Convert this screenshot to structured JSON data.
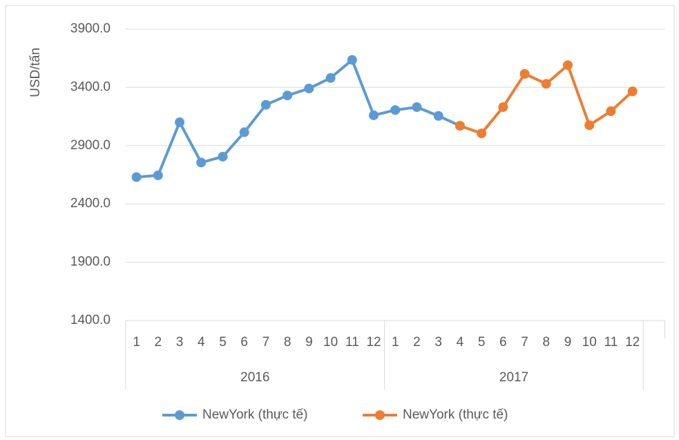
{
  "chart_data": {
    "type": "line",
    "ylabel": "USD/tấn",
    "category_groups": [
      {
        "name": "2016",
        "categories": [
          "1",
          "2",
          "3",
          "4",
          "5",
          "6",
          "7",
          "8",
          "9",
          "10",
          "11",
          "12"
        ]
      },
      {
        "name": "2017",
        "categories": [
          "1",
          "2",
          "3",
          "4",
          "5",
          "6",
          "7",
          "8",
          "9",
          "10",
          "11",
          "12"
        ]
      }
    ],
    "series": [
      {
        "name": "NewYork (thực tế)",
        "color": "#5b9bd5",
        "values": [
          2630,
          2645,
          3100,
          2755,
          2805,
          3015,
          3250,
          3330,
          3390,
          3480,
          3635,
          3160,
          3205,
          3230,
          3155,
          3070,
          null,
          null,
          null,
          null,
          null,
          null,
          null,
          null
        ]
      },
      {
        "name": "NewYork (thực tế)",
        "color": "#ed7d31",
        "values": [
          null,
          null,
          null,
          null,
          null,
          null,
          null,
          null,
          null,
          null,
          null,
          null,
          null,
          null,
          null,
          3070,
          3005,
          3230,
          3515,
          3430,
          3590,
          3075,
          3195,
          3365
        ]
      }
    ],
    "ylim": [
      1400,
      3900
    ],
    "yticks": [
      {
        "value": 1400,
        "label": "1400.0"
      },
      {
        "value": 1900,
        "label": "1900.0"
      },
      {
        "value": 2400,
        "label": "2400.0"
      },
      {
        "value": 2900,
        "label": "2900.0"
      },
      {
        "value": 3400,
        "label": "3400.0"
      },
      {
        "value": 3900,
        "label": "3900.0"
      }
    ],
    "grid": true,
    "legend": "bottom"
  }
}
